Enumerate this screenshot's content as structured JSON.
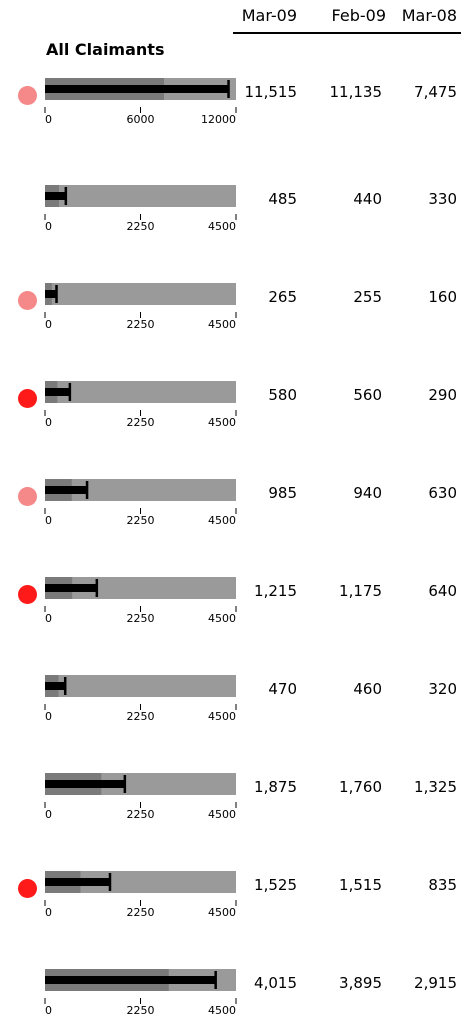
{
  "header": {
    "columns": [
      "Mar-09",
      "Feb-09",
      "Mar-08"
    ],
    "section_title": "All Claimants"
  },
  "colors": {
    "status_red": "#ff1a1a",
    "status_pink": "#f58888",
    "range_light": "#9a9a9a",
    "range_dark": "#7a7a7a",
    "measure": "#000000"
  },
  "chart_data": {
    "type": "bullet",
    "title": "All Claimants",
    "columns": [
      "Mar-09",
      "Feb-09",
      "Mar-08"
    ],
    "rows": [
      {
        "status": "pink",
        "values_display": [
          "11,515",
          "11,135",
          "7,475"
        ],
        "value": 11515,
        "target": 11515,
        "band": 7475,
        "axis_max": 12000,
        "ticks": [
          "0",
          "6000",
          "12000"
        ]
      },
      {
        "status": "none",
        "values_display": [
          "485",
          "440",
          "330"
        ],
        "value": 485,
        "target": 485,
        "band": 330,
        "axis_max": 4500,
        "ticks": [
          "0",
          "2250",
          "4500"
        ]
      },
      {
        "status": "pink",
        "values_display": [
          "265",
          "255",
          "160"
        ],
        "value": 265,
        "target": 265,
        "band": 160,
        "axis_max": 4500,
        "ticks": [
          "0",
          "2250",
          "4500"
        ]
      },
      {
        "status": "red",
        "values_display": [
          "580",
          "560",
          "290"
        ],
        "value": 580,
        "target": 580,
        "band": 290,
        "axis_max": 4500,
        "ticks": [
          "0",
          "2250",
          "4500"
        ]
      },
      {
        "status": "pink",
        "values_display": [
          "985",
          "940",
          "630"
        ],
        "value": 985,
        "target": 985,
        "band": 630,
        "axis_max": 4500,
        "ticks": [
          "0",
          "2250",
          "4500"
        ]
      },
      {
        "status": "red",
        "values_display": [
          "1,215",
          "1,175",
          "640"
        ],
        "value": 1215,
        "target": 1215,
        "band": 640,
        "axis_max": 4500,
        "ticks": [
          "0",
          "2250",
          "4500"
        ]
      },
      {
        "status": "none",
        "values_display": [
          "470",
          "460",
          "320"
        ],
        "value": 470,
        "target": 470,
        "band": 320,
        "axis_max": 4500,
        "ticks": [
          "0",
          "2250",
          "4500"
        ]
      },
      {
        "status": "none",
        "values_display": [
          "1,875",
          "1,760",
          "1,325"
        ],
        "value": 1875,
        "target": 1875,
        "band": 1325,
        "axis_max": 4500,
        "ticks": [
          "0",
          "2250",
          "4500"
        ]
      },
      {
        "status": "red",
        "values_display": [
          "1,525",
          "1,515",
          "835"
        ],
        "value": 1525,
        "target": 1525,
        "band": 835,
        "axis_max": 4500,
        "ticks": [
          "0",
          "2250",
          "4500"
        ]
      },
      {
        "status": "none",
        "values_display": [
          "4,015",
          "3,895",
          "2,915"
        ],
        "value": 4015,
        "target": 4015,
        "band": 2915,
        "axis_max": 4500,
        "ticks": [
          "0",
          "2250",
          "4500"
        ]
      }
    ]
  }
}
